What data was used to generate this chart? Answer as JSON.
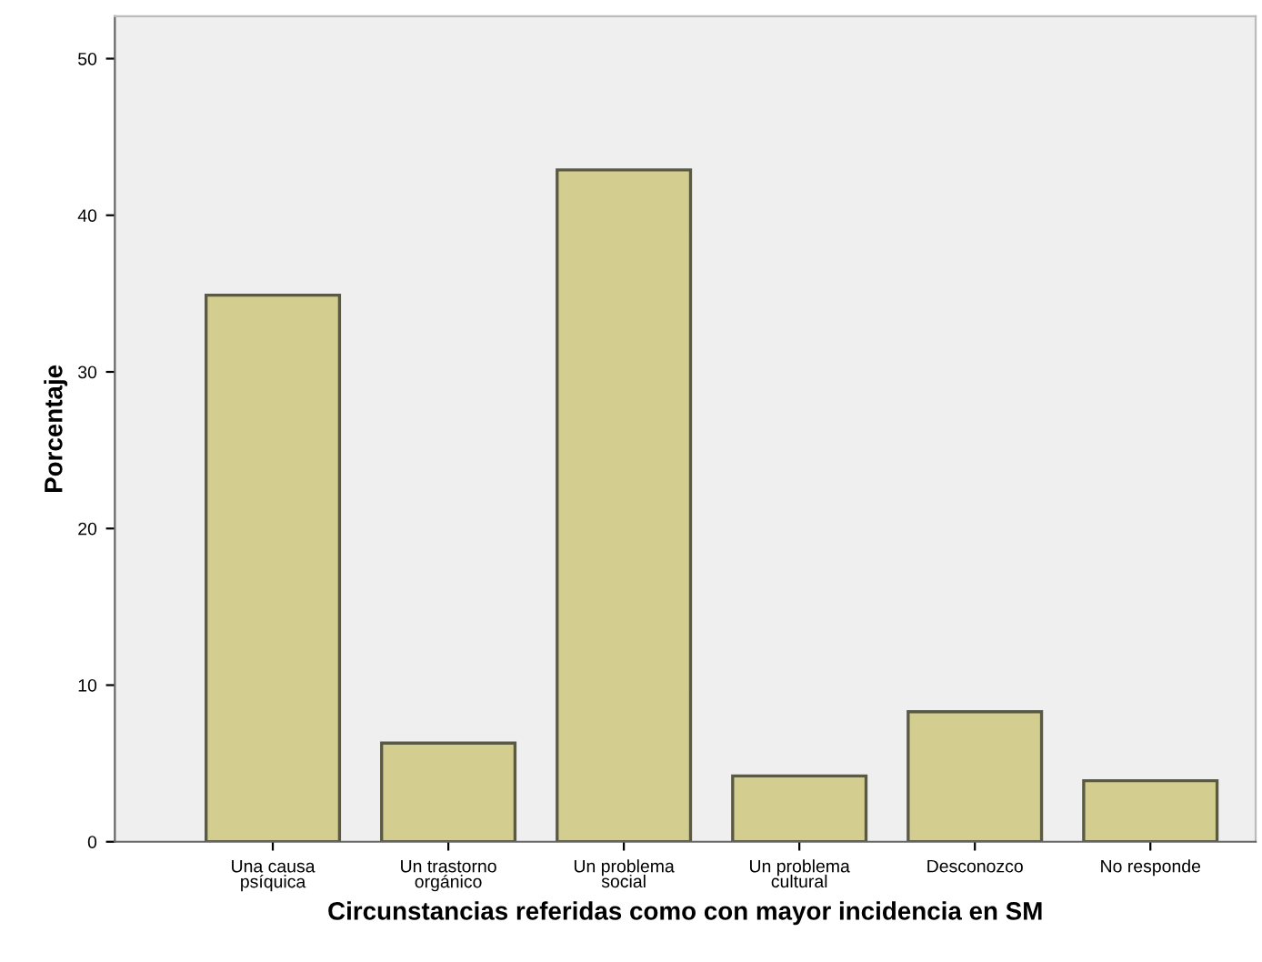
{
  "chart_data": {
    "type": "bar",
    "xlabel": "Circunstancias referidas como con mayor incidencia en SM",
    "ylabel": "Porcentaje",
    "categories": [
      "Una causa\npsíquica",
      "Un trastorno\norgánico",
      "Un problema\nsocial",
      "Un problema\ncultural",
      "Desconozco",
      "No responde"
    ],
    "values": [
      34.9,
      6.3,
      42.9,
      4.2,
      8.3,
      3.9
    ],
    "color": "#d3cd8f",
    "ylim": [
      0,
      52.7
    ],
    "yticks": [
      0,
      10,
      20,
      30,
      40,
      50
    ],
    "grid": false
  }
}
